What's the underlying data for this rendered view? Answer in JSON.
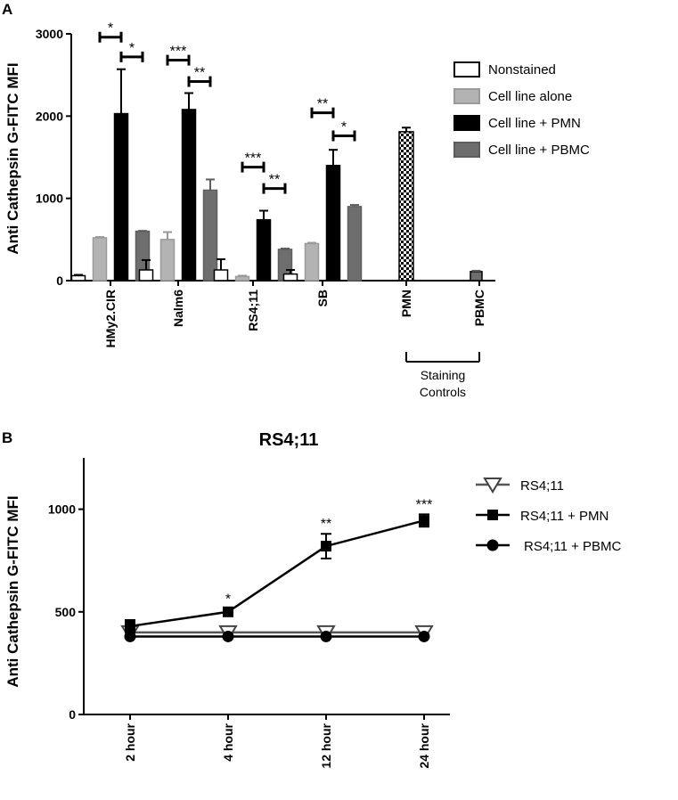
{
  "chart_data": [
    {
      "panel": "A",
      "type": "bar",
      "ylabel": "Anti Cathepsin G-FITC MFI",
      "ylim": [
        0,
        3000
      ],
      "yticks": [
        0,
        1000,
        2000,
        3000
      ],
      "categories": [
        "HMy2.CIR",
        "Nalm6",
        "RS4;11",
        "SB",
        "PMN",
        "PBMC"
      ],
      "group_label": "Staining Controls",
      "legend_position": "top-right",
      "series": [
        {
          "name": "Nonstained",
          "color": "#ffffff",
          "values": [
            60,
            130,
            130,
            80,
            null,
            null
          ],
          "errors": [
            10,
            120,
            130,
            50,
            null,
            null
          ]
        },
        {
          "name": "Cell line alone",
          "color": "#b3b3b3",
          "values": [
            520,
            500,
            50,
            450,
            null,
            null
          ],
          "errors": [
            10,
            90,
            10,
            10,
            null,
            null
          ]
        },
        {
          "name": "Cell line + PMN",
          "color": "#000000",
          "values": [
            2030,
            2080,
            740,
            1400,
            1810,
            null
          ],
          "errors": [
            540,
            200,
            110,
            190,
            50,
            null
          ]
        },
        {
          "name": "Cell line + PBMC",
          "color": "#6e6e6e",
          "values": [
            600,
            1100,
            380,
            900,
            null,
            110
          ],
          "errors": [
            5,
            130,
            10,
            20,
            null,
            10
          ]
        }
      ],
      "significance": [
        {
          "category": "HMy2.CIR",
          "pairs": [
            {
              "between": [
                "Cell line alone",
                "Cell line + PMN"
              ],
              "label": "*",
              "level": 2960
            },
            {
              "between": [
                "Cell line + PMN",
                "Cell line + PBMC"
              ],
              "label": "*",
              "level": 2720
            }
          ]
        },
        {
          "category": "Nalm6",
          "pairs": [
            {
              "between": [
                "Cell line alone",
                "Cell line + PMN"
              ],
              "label": "***",
              "level": 2680
            },
            {
              "between": [
                "Cell line + PMN",
                "Cell line + PBMC"
              ],
              "label": "**",
              "level": 2420
            }
          ]
        },
        {
          "category": "RS4;11",
          "pairs": [
            {
              "between": [
                "Cell line alone",
                "Cell line + PMN"
              ],
              "label": "***",
              "level": 1380
            },
            {
              "between": [
                "Cell line + PMN",
                "Cell line + PBMC"
              ],
              "label": "**",
              "level": 1120
            }
          ]
        },
        {
          "category": "SB",
          "pairs": [
            {
              "between": [
                "Cell line alone",
                "Cell line + PMN"
              ],
              "label": "**",
              "level": 2040
            },
            {
              "between": [
                "Cell line + PMN",
                "Cell line + PBMC"
              ],
              "label": "*",
              "level": 1760
            }
          ]
        }
      ]
    },
    {
      "panel": "B",
      "type": "line",
      "title": "RS4;11",
      "ylabel": "Anti Cathepsin G-FITC MFI",
      "ylim": [
        0,
        1250
      ],
      "yticks": [
        0,
        500,
        1000
      ],
      "categories": [
        "2 hour",
        "4 hour",
        "12 hour",
        "24 hour"
      ],
      "legend_position": "top-right",
      "series": [
        {
          "name": "RS4;11",
          "marker": "triangle-down-open",
          "values": [
            400,
            400,
            400,
            400
          ],
          "errors": [
            10,
            10,
            10,
            10
          ]
        },
        {
          "name": "RS4;11 + PMN",
          "marker": "square",
          "values": [
            430,
            500,
            820,
            945
          ],
          "errors": [
            30,
            15,
            60,
            30
          ]
        },
        {
          "name": "RS4;11 + PBMC",
          "marker": "circle",
          "values": [
            380,
            380,
            380,
            380
          ],
          "errors": [
            8,
            8,
            8,
            8
          ]
        }
      ],
      "significance": [
        {
          "category": "4 hour",
          "label": "*"
        },
        {
          "category": "12 hour",
          "label": "**"
        },
        {
          "category": "24 hour",
          "label": "***"
        }
      ]
    }
  ]
}
